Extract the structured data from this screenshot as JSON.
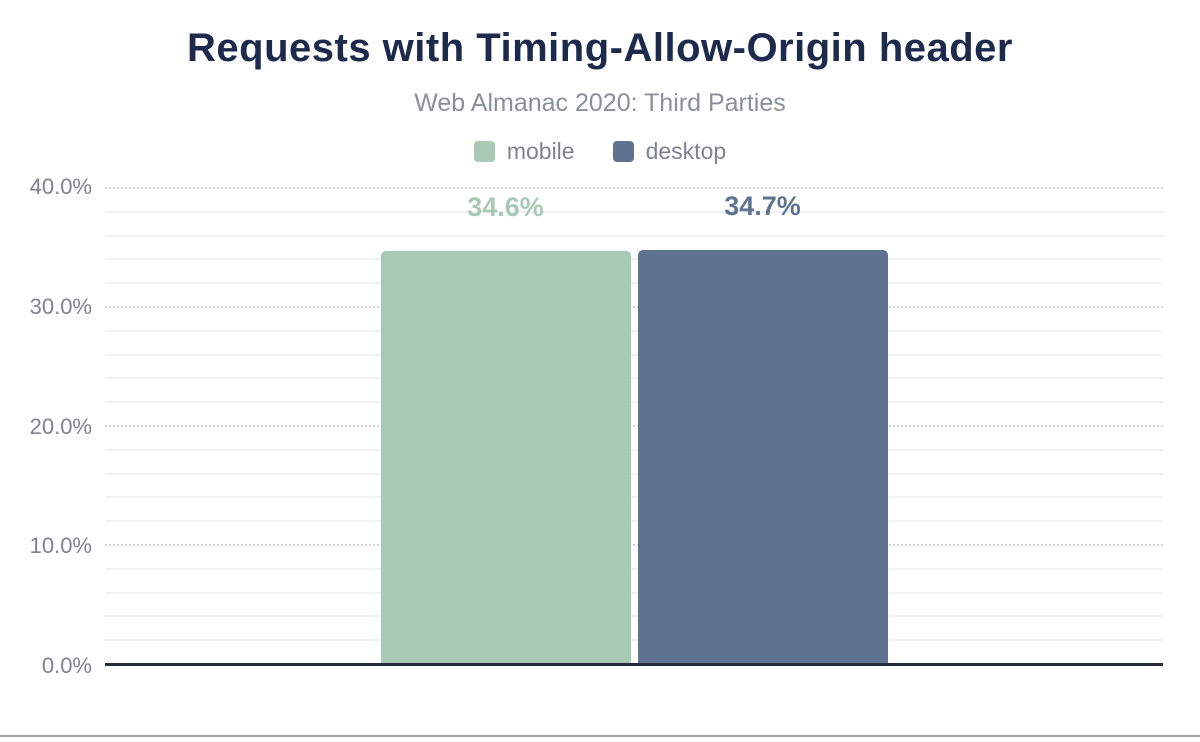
{
  "title": "Requests with Timing-Allow-Origin header",
  "subtitle": "Web Almanac 2020: Third Parties",
  "colors": {
    "title": "#1d2a4c",
    "subtitle": "#8a909a",
    "axis_text": "#7e838d",
    "axis_line": "#262b38",
    "grid_major": "#d2d5d9",
    "grid_minor": "#f0f1f2",
    "divider": "#9fa1a4",
    "background": "#ffffff",
    "mobile": "#a7c9b6",
    "desktop": "#5f7290"
  },
  "legend": {
    "position": "top",
    "items": [
      {
        "label": "mobile",
        "color": "#a7c9b6"
      },
      {
        "label": "desktop",
        "color": "#5f7290"
      }
    ]
  },
  "chart_data": {
    "type": "bar",
    "title": "Requests with Timing-Allow-Origin header",
    "subtitle": "Web Almanac 2020: Third Parties",
    "series": [
      {
        "name": "mobile",
        "value": 34.6,
        "data_label": "34.6%",
        "color": "#a7c9b6"
      },
      {
        "name": "desktop",
        "value": 34.7,
        "data_label": "34.7%",
        "color": "#5f7290"
      }
    ],
    "xlabel": "",
    "ylabel": "",
    "ylim": [
      0,
      40
    ],
    "ytick_interval_major": 10,
    "ytick_interval_minor": 2,
    "yticks": [
      {
        "value": 0,
        "label": "0.0%"
      },
      {
        "value": 10,
        "label": "10.0%"
      },
      {
        "value": 20,
        "label": "20.0%"
      },
      {
        "value": 30,
        "label": "30.0%"
      },
      {
        "value": 40,
        "label": "40.0%"
      }
    ],
    "grid": "horizontal",
    "legend_position": "top"
  }
}
